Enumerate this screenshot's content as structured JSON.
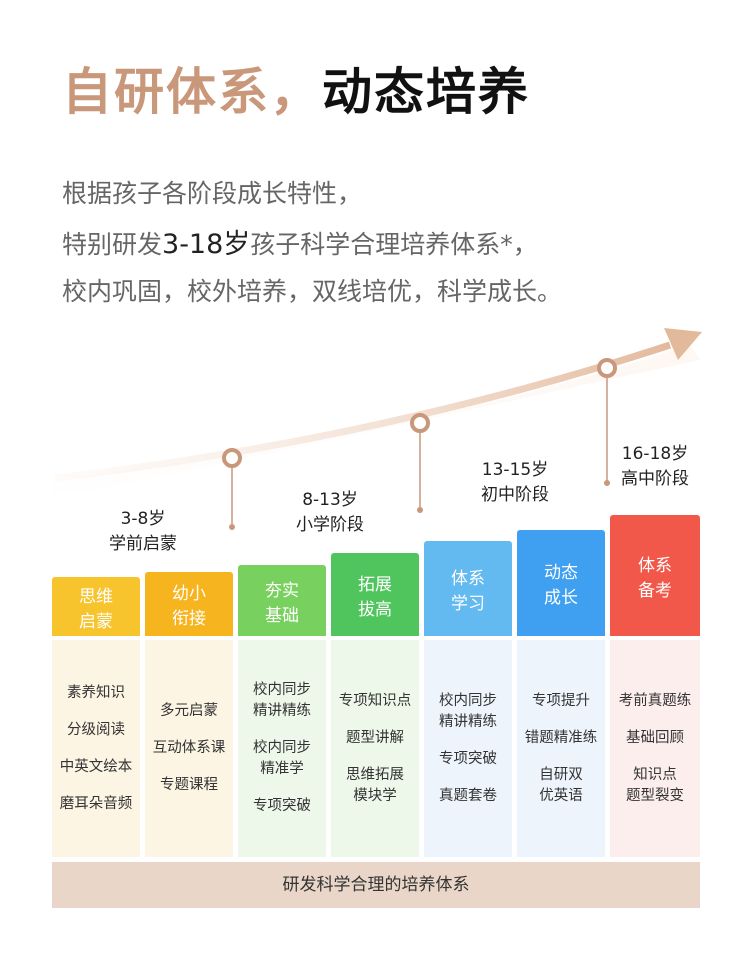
{
  "title": {
    "part1": "自研体系，",
    "part2": "动态培养"
  },
  "intro": {
    "line1": "根据孩子各阶段成长特性，",
    "line2": [
      "特别研发",
      "3-18岁",
      "孩子科学合理培养体系*，"
    ],
    "line3": "校内巩固，校外培养，双线培优，科学成长。"
  },
  "stages": [
    {
      "age": "3-8岁",
      "name": "学前启蒙"
    },
    {
      "age": "8-13岁",
      "name": "小学阶段"
    },
    {
      "age": "13-15岁",
      "name": "初中阶段"
    },
    {
      "age": "16-18岁",
      "name": "高中阶段"
    }
  ],
  "columns": [
    {
      "header": [
        "思维",
        "启蒙"
      ],
      "items": [
        [
          "素养知识"
        ],
        [
          "分级阅读"
        ],
        [
          "中英文绘本"
        ],
        [
          "磨耳朵音频"
        ]
      ]
    },
    {
      "header": [
        "幼小",
        "衔接"
      ],
      "items": [
        [
          "多元启蒙"
        ],
        [
          "互动体系课"
        ],
        [
          "专题课程"
        ]
      ]
    },
    {
      "header": [
        "夯实",
        "基础"
      ],
      "items": [
        [
          "校内同步",
          "精讲精练"
        ],
        [
          "校内同步",
          "精准学"
        ],
        [
          "专项突破"
        ]
      ]
    },
    {
      "header": [
        "拓展",
        "拔高"
      ],
      "items": [
        [
          "专项知识点"
        ],
        [
          "题型讲解"
        ],
        [
          "思维拓展",
          "模块学"
        ]
      ]
    },
    {
      "header": [
        "体系",
        "学习"
      ],
      "items": [
        [
          "校内同步",
          "精讲精练"
        ],
        [
          "专项突破"
        ],
        [
          "真题套卷"
        ]
      ]
    },
    {
      "header": [
        "动态",
        "成长"
      ],
      "items": [
        [
          "专项提升"
        ],
        [
          "错题精准练"
        ],
        [
          "自研双",
          "优英语"
        ]
      ]
    },
    {
      "header": [
        "体系",
        "备考"
      ],
      "items": [
        [
          "考前真题练"
        ],
        [
          "基础回顾"
        ],
        [
          "知识点",
          "题型裂变"
        ]
      ]
    }
  ],
  "footer": "研发科学合理的培养体系"
}
